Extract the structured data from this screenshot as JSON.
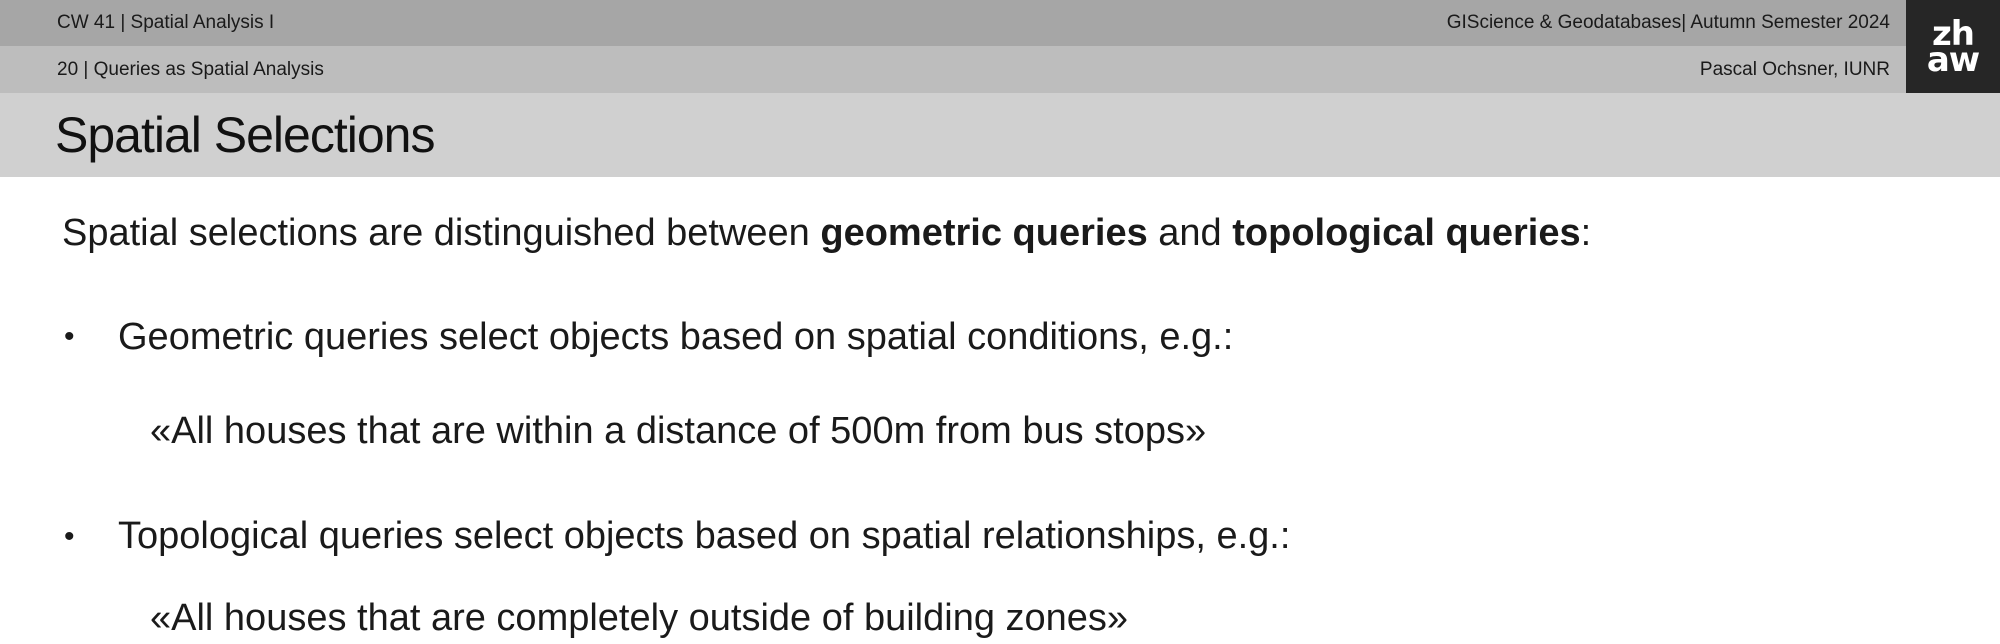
{
  "header": {
    "course": "CW 41 | Spatial Analysis I",
    "semester": "GIScience & Geodatabases| Autumn Semester 2024",
    "lecture": "20 | Queries as Spatial Analysis",
    "author": "Pascal Ochsner, IUNR",
    "logo_top": "zh",
    "logo_bottom": "aw"
  },
  "slide": {
    "title": "Spatial Selections",
    "intro": {
      "prefix": "Spatial selections are distinguished between ",
      "term1": "geometric queries",
      "middle": " and ",
      "term2": "topological queries",
      "suffix": ":"
    },
    "bullets": [
      {
        "marker": "•",
        "text": "Geometric queries select objects based on spatial conditions, e.g.:",
        "example": "«All houses that are within a distance of 500m from bus stops»"
      },
      {
        "marker": "•",
        "text": "Topological queries select objects based on spatial relationships, e.g.:",
        "example": "«All houses that are completely outside of building zones»"
      }
    ]
  },
  "colors": {
    "header_bar_1": "#a6a6a6",
    "header_bar_2": "#bdbdbd",
    "title_bar": "#d0d0d0",
    "logo_background": "#262626",
    "logo_text": "#ffffff"
  }
}
